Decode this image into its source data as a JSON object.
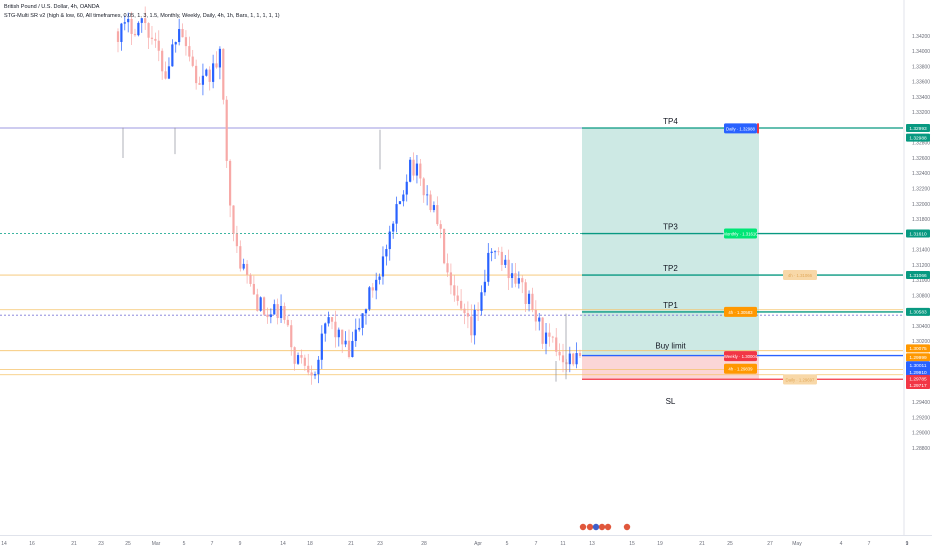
{
  "header": {
    "symbol_line": "British Pound / U.S. Dollar, 4h, OANDA",
    "indicator_line": "STG-Multi SR v2 (high & low, 60, All timeframes, 0.05, 1, 3, 1.5, Monthly, Weekly, Daily, 4h, 1h, Bars, 1, 1, 1, 1, 1)"
  },
  "colors": {
    "bull": "#2962ff",
    "bear": "#f7a9a7",
    "profit_zone": "#cde9e4",
    "loss_zone": "#fbd6d6",
    "target_line": "#089981",
    "stop_line": "#f23645",
    "entry_line": "#2962ff",
    "orange_line": "#f5c36b",
    "purple_line": "#7e57c2"
  },
  "chart_data": {
    "type": "candlestick",
    "title": "British Pound / U.S. Dollar, 4h, OANDA",
    "y_range": [
      1.2766,
      1.3467
    ],
    "y_ticks": [
      "1.34200",
      "1.34000",
      "1.33800",
      "1.33600",
      "1.33400",
      "1.33200",
      "1.33000",
      "1.32800",
      "1.32600",
      "1.32400",
      "1.32200",
      "1.32000",
      "1.31800",
      "1.31600",
      "1.31400",
      "1.31200",
      "1.31000",
      "1.30800",
      "1.30600",
      "1.30400",
      "1.30200",
      "1.30000",
      "1.29800",
      "1.29600",
      "1.29400",
      "1.29200",
      "1.29000",
      "1.28800"
    ],
    "x_ticks": [
      "14",
      "16",
      "21",
      "23",
      "25",
      "Mar",
      "5",
      "7",
      "9",
      "14",
      "18",
      "21",
      "23",
      "28",
      "Apr",
      "5",
      "7",
      "11",
      "13",
      "15",
      "19",
      "21",
      "25",
      "27",
      "May",
      "4",
      "7",
      "9",
      "11",
      "1"
    ],
    "price_path_waypoints": [
      [
        0,
        1.3426
      ],
      [
        8,
        1.344
      ],
      [
        14,
        1.337
      ],
      [
        18,
        1.344
      ],
      [
        24,
        1.335
      ],
      [
        30,
        1.339
      ],
      [
        34,
        1.315
      ],
      [
        40,
        1.308
      ],
      [
        44,
        1.305
      ],
      [
        48,
        1.306
      ],
      [
        52,
        1.3
      ],
      [
        58,
        1.2985
      ],
      [
        62,
        1.305
      ],
      [
        68,
        1.3
      ],
      [
        74,
        1.308
      ],
      [
        80,
        1.315
      ],
      [
        86,
        1.3258
      ],
      [
        90,
        1.322
      ],
      [
        94,
        1.318
      ],
      [
        98,
        1.308
      ],
      [
        104,
        1.303
      ],
      [
        110,
        1.314
      ],
      [
        116,
        1.311
      ],
      [
        120,
        1.308
      ],
      [
        126,
        1.302
      ],
      [
        132,
        1.3
      ],
      [
        136,
        1.2996
      ]
    ],
    "position": {
      "entry": 1.30011,
      "stop_loss": 1.29701,
      "targets": [
        {
          "label": "TP1",
          "price": 1.30583
        },
        {
          "label": "TP2",
          "price": 1.31066
        },
        {
          "label": "TP3",
          "price": 1.3161
        },
        {
          "label": "TP4",
          "price": 1.32993
        }
      ],
      "entry_label": "Buy limit",
      "stop_label": "SL"
    },
    "sr_lines": [
      {
        "price": 1.32993,
        "style": "solid",
        "color": "#7e79d6"
      },
      {
        "price": 1.3161,
        "style": "dotted",
        "color": "#22ab94"
      },
      {
        "price": 1.31066,
        "style": "solid",
        "color": "#f5c36b"
      },
      {
        "price": 1.30611,
        "style": "solid",
        "color": "#f5c36b"
      },
      {
        "price": 1.3054,
        "style": "dotted",
        "color": "#7e79d6"
      },
      {
        "price": 1.30075,
        "style": "solid",
        "color": "#f5c36b"
      },
      {
        "price": 1.2983,
        "style": "solid",
        "color": "#f5c36b"
      },
      {
        "price": 1.2976,
        "style": "solid",
        "color": "#f5c36b"
      }
    ],
    "level_tags": [
      {
        "text": "Daily · 1.32988",
        "price": 1.32988,
        "color": "#2962ff",
        "text_color": "#ffffff"
      },
      {
        "text": "Monthly · 1.31610",
        "price": 1.3161,
        "color": "#00e676",
        "text_color": "#ffffff"
      },
      {
        "text": "4h · 1.31066",
        "price": 1.31066,
        "color": "#f8d8a8",
        "text_color": "#e0a85a"
      },
      {
        "text": "4h · 1.30583",
        "price": 1.30583,
        "color": "#ff9800",
        "text_color": "#ffffff"
      },
      {
        "text": "Weekly · 1.30004",
        "price": 1.30004,
        "color": "#f23645",
        "text_color": "#ffffff"
      },
      {
        "text": "4h · 1.29839",
        "price": 1.29839,
        "color": "#ff9800",
        "text_color": "#ffffff"
      },
      {
        "text": "Daily · 1.29697",
        "price": 1.29697,
        "color": "#f8d8a8",
        "text_color": "#e0a85a"
      }
    ],
    "price_labels": [
      {
        "text": "1.32993",
        "price": 1.32993,
        "color": "#089981"
      },
      {
        "text": "1.32988",
        "price": 1.32866,
        "color": "#089981"
      },
      {
        "text": "1.31610",
        "price": 1.3161,
        "color": "#089981"
      },
      {
        "text": "1.31066",
        "price": 1.31066,
        "color": "#089981"
      },
      {
        "text": "1.30583",
        "price": 1.30583,
        "color": "#089981"
      },
      {
        "text": "1.30075",
        "price": 1.30105,
        "color": "#ff9800"
      },
      {
        "text": "1.29999",
        "price": 1.29989,
        "color": "#ff9800"
      },
      {
        "text": "1.30011",
        "price": 1.29885,
        "color": "#2962ff"
      },
      {
        "text": "1.29910",
        "price": 1.29795,
        "color": "#2962ff"
      },
      {
        "text": "1.29785",
        "price": 1.29705,
        "color": "#f23645"
      },
      {
        "text": "1.29717",
        "price": 1.29625,
        "color": "#f23645"
      }
    ]
  }
}
